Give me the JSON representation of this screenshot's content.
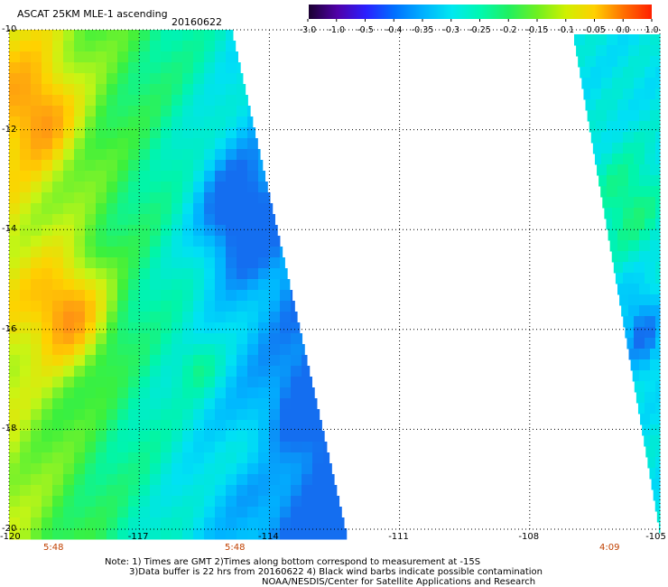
{
  "header": {
    "title": "ASCAT 25KM MLE-1 ascending",
    "date": "20160622"
  },
  "colorbar": {
    "tick_labels": [
      "-3.0",
      "-1.0",
      "-0.5",
      "-0.4",
      "-0.35",
      "-0.3",
      "-0.25",
      "-0.2",
      "-0.15",
      "-0.1",
      "-0.05",
      "0.0",
      "1.0"
    ],
    "colors": [
      "#1a0030",
      "#5000a8",
      "#2a20ff",
      "#0070ff",
      "#00b0ff",
      "#00e8f0",
      "#00f8b0",
      "#20f060",
      "#70f020",
      "#d0f000",
      "#ffd000",
      "#ff7000",
      "#ff2000"
    ]
  },
  "map": {
    "lat_labels": [
      "-10",
      "-12",
      "-14",
      "-16",
      "-18",
      "-20"
    ],
    "lon_labels": [
      "-120",
      "-117",
      "-114",
      "-111",
      "-108",
      "-105"
    ],
    "swath_times": [
      "5:48",
      "5:48",
      "4:09"
    ]
  },
  "notes": {
    "line1": "Note: 1) Times are GMT 2)Times along bottom correspond to measurement at -15S",
    "line2": "3)Data buffer is 22 hrs from 20160622 4) Black wind barbs indicate possible contamination",
    "line3": "NOAA/NESDIS/Center for Satellite Applications and Research"
  }
}
